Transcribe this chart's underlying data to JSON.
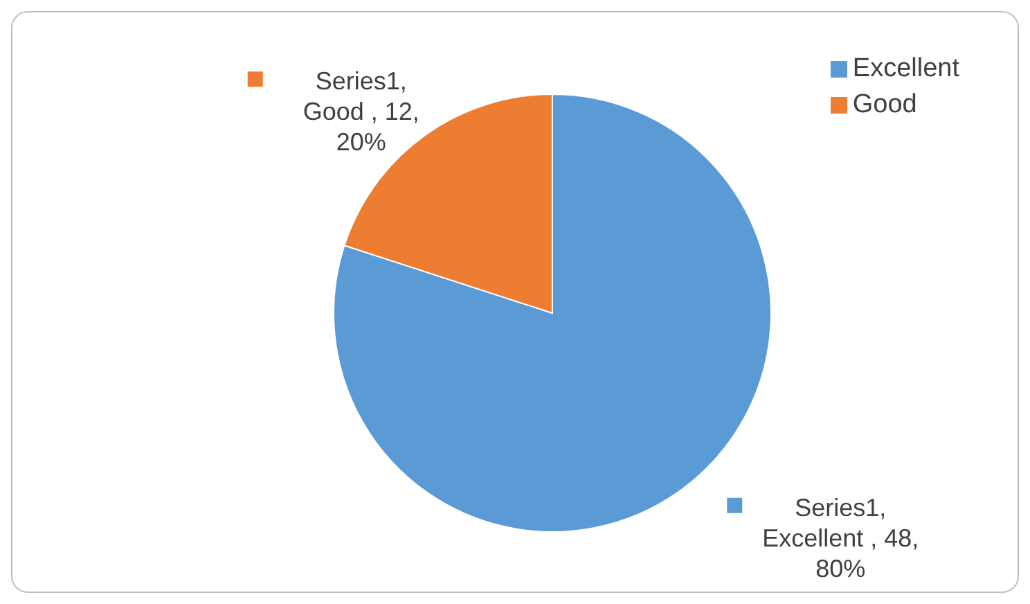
{
  "chart_data": {
    "type": "pie",
    "categories": [
      "Excellent",
      "Good"
    ],
    "series": [
      {
        "values": [
          48,
          12
        ],
        "colors": [
          "#5b9bd5",
          "#ed7d31"
        ],
        "value_labels": [
          "Series1, Excellent , 48, 80%",
          "Series1, Good , 12, 20%"
        ]
      }
    ],
    "legend": "top right"
  }
}
